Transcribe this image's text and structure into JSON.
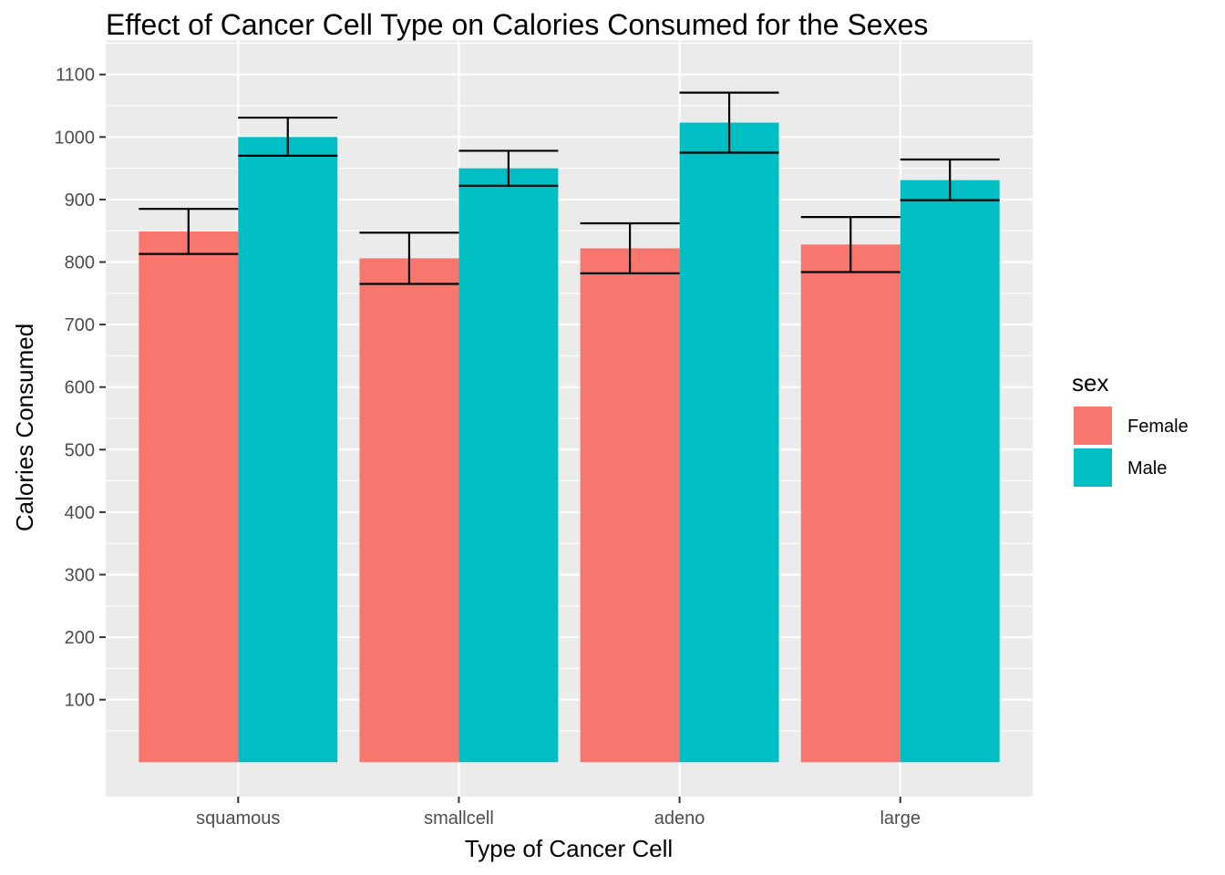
{
  "chart_data": {
    "type": "bar",
    "title": "Effect of Cancer Cell Type on Calories Consumed for the Sexes",
    "xlabel": "Type of Cancer Cell",
    "ylabel": "Calories Consumed",
    "categories": [
      "squamous",
      "smallcell",
      "adeno",
      "large"
    ],
    "yticks": [
      100,
      200,
      300,
      400,
      500,
      600,
      700,
      800,
      900,
      1000,
      1100
    ],
    "ylim": [
      -55,
      1155
    ],
    "grid": true,
    "legend": {
      "title": "sex",
      "position": "right"
    },
    "series": [
      {
        "name": "Female",
        "color": "#F8766D",
        "values": [
          849,
          806,
          822,
          828
        ],
        "error_low": [
          813,
          765,
          782,
          784
        ],
        "error_high": [
          885,
          847,
          862,
          872
        ]
      },
      {
        "name": "Male",
        "color": "#00BFC4",
        "values": [
          1000,
          950,
          1023,
          931
        ],
        "error_low": [
          970,
          922,
          975,
          899
        ],
        "error_high": [
          1031,
          978,
          1071,
          964
        ]
      }
    ]
  }
}
